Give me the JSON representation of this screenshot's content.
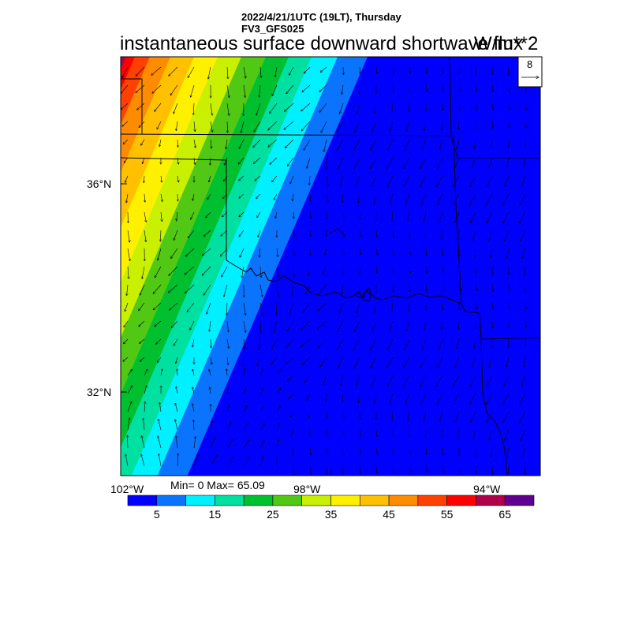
{
  "header": {
    "line1": "2022/4/21/1UTC (19LT), Thursday",
    "line2": "FV3_GFS025",
    "title": "instantaneous surface downward shortwave flux",
    "units": "W/m**2"
  },
  "vector_ref": {
    "value": "8"
  },
  "axes": {
    "lat_labels": [
      "36°N",
      "32°N"
    ],
    "lon_labels": [
      "102°W",
      "98°W",
      "94°W"
    ]
  },
  "stats": {
    "text": "Min= 0 Max= 65.09"
  },
  "colorbar": {
    "colors": [
      "#0000ff",
      "#0a74ff",
      "#00f0ff",
      "#00e0a0",
      "#00c030",
      "#50c814",
      "#c8f000",
      "#fff000",
      "#ffc000",
      "#ff8c00",
      "#ff4000",
      "#ff0000",
      "#b0004c",
      "#600090"
    ],
    "labels": [
      "5",
      "15",
      "25",
      "35",
      "45",
      "55",
      "65"
    ]
  },
  "chart_data": {
    "type": "heatmap",
    "title": "instantaneous surface downward shortwave flux",
    "units": "W/m**2",
    "levels": [
      0,
      5,
      10,
      15,
      20,
      25,
      30,
      35,
      40,
      45,
      50,
      55,
      60,
      65,
      70
    ],
    "min": 0,
    "max": 65.09,
    "lon_range": [
      -102.1,
      -93.2
    ],
    "lat_range": [
      30.6,
      38.7
    ],
    "gradient": "values increase from east (0, blue) to west/northwest (~65, dark red)"
  }
}
